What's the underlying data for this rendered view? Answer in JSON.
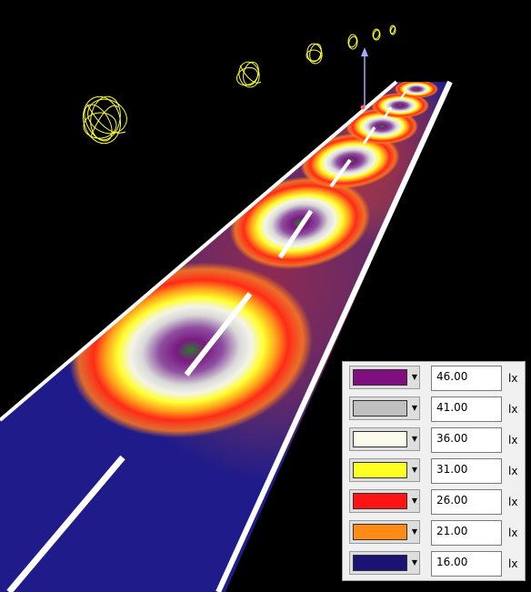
{
  "legend": {
    "unit": "lx",
    "entries": [
      {
        "value": "46.00",
        "color": "#7f0f7f"
      },
      {
        "value": "41.00",
        "color": "#c0c0c0"
      },
      {
        "value": "36.00",
        "color": "#fbfbec"
      },
      {
        "value": "31.00",
        "color": "#ffff22"
      },
      {
        "value": "26.00",
        "color": "#ff1414"
      },
      {
        "value": "21.00",
        "color": "#ff8a14"
      },
      {
        "value": "16.00",
        "color": "#1c1474"
      }
    ]
  },
  "scene_colors": {
    "background": "#000000",
    "road": "#1f1b8a",
    "marking": "#ffffff",
    "luminaire": "#ffff33"
  }
}
